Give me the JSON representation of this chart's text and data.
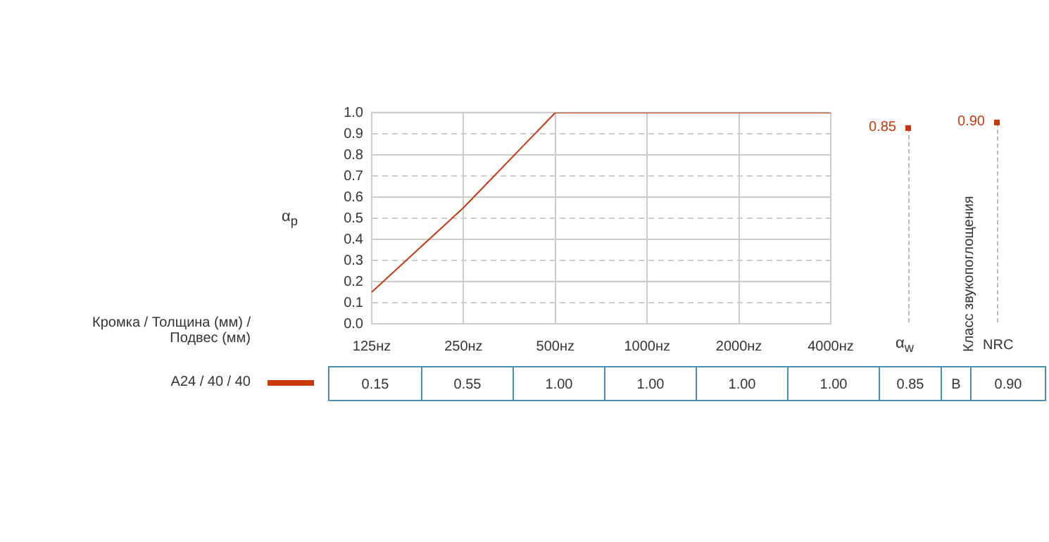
{
  "chart_data": {
    "type": "line",
    "categories": [
      "125нz",
      "250нz",
      "500нz",
      "1000нz",
      "2000нz",
      "4000нz"
    ],
    "series": [
      {
        "name": "A24 / 40 / 40",
        "color": "#c8380c",
        "values": [
          0.15,
          0.55,
          1.0,
          1.0,
          1.0,
          1.0
        ],
        "value_labels": [
          "0.15",
          "0.55",
          "1.00",
          "1.00",
          "1.00",
          "1.00"
        ]
      }
    ],
    "ylabel": "α$_{p}$",
    "legend_title": "Кромка / Толщина (мм) / Подвес (мм)",
    "ylim": [
      0,
      1
    ],
    "yticks": [
      {
        "value": 0,
        "label": "0.0"
      },
      0.1,
      0.2,
      0.3,
      0.4,
      0.5,
      0.6,
      0.7,
      0.8,
      0.9,
      {
        "value": 1,
        "label": "1.0"
      }
    ],
    "grid": true,
    "legend": "bottom left",
    "marker": "none",
    "line_style": "solid",
    "annotations": [
      "α$_{w}$",
      "0.85",
      "Класс звукопоглощения",
      "B",
      "NRC",
      "0.90"
    ]
  }
}
